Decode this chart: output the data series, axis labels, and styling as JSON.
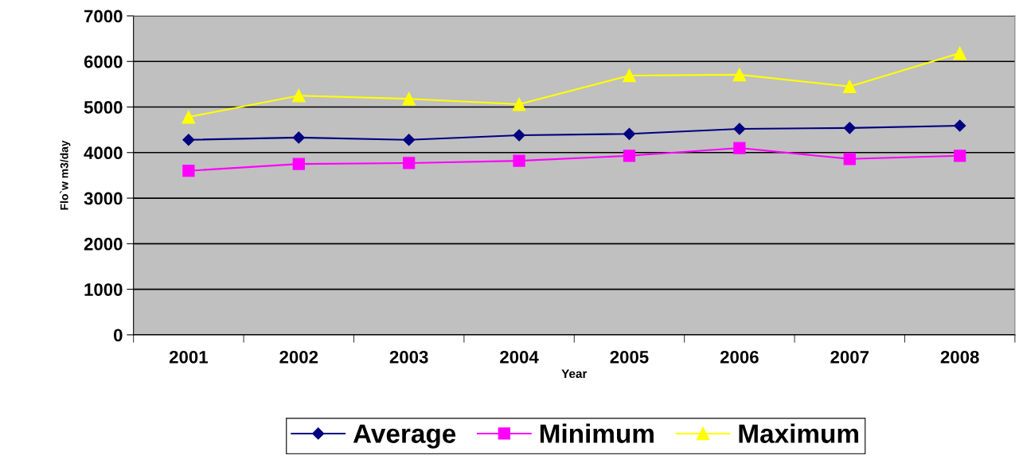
{
  "chart_data": {
    "type": "line",
    "xlabel": "Year",
    "ylabel": "Flo`w m3/day",
    "categories": [
      "2001",
      "2002",
      "2003",
      "2004",
      "2005",
      "2006",
      "2007",
      "2008"
    ],
    "series": [
      {
        "name": "Average",
        "color": "#000080",
        "marker": "diamond",
        "values": [
          4280,
          4330,
          4280,
          4380,
          4410,
          4520,
          4540,
          4590
        ]
      },
      {
        "name": "Minimum",
        "color": "#ff00ff",
        "marker": "square",
        "values": [
          3600,
          3750,
          3770,
          3820,
          3930,
          4100,
          3860,
          3930
        ]
      },
      {
        "name": "Maximum",
        "color": "#ffff00",
        "marker": "triangle",
        "values": [
          4780,
          5250,
          5180,
          5060,
          5690,
          5710,
          5450,
          6180
        ]
      }
    ],
    "ylim": [
      0,
      7000
    ],
    "yticks": [
      0,
      1000,
      2000,
      3000,
      4000,
      5000,
      6000,
      7000
    ],
    "grid": "y",
    "legend": "bottom"
  }
}
